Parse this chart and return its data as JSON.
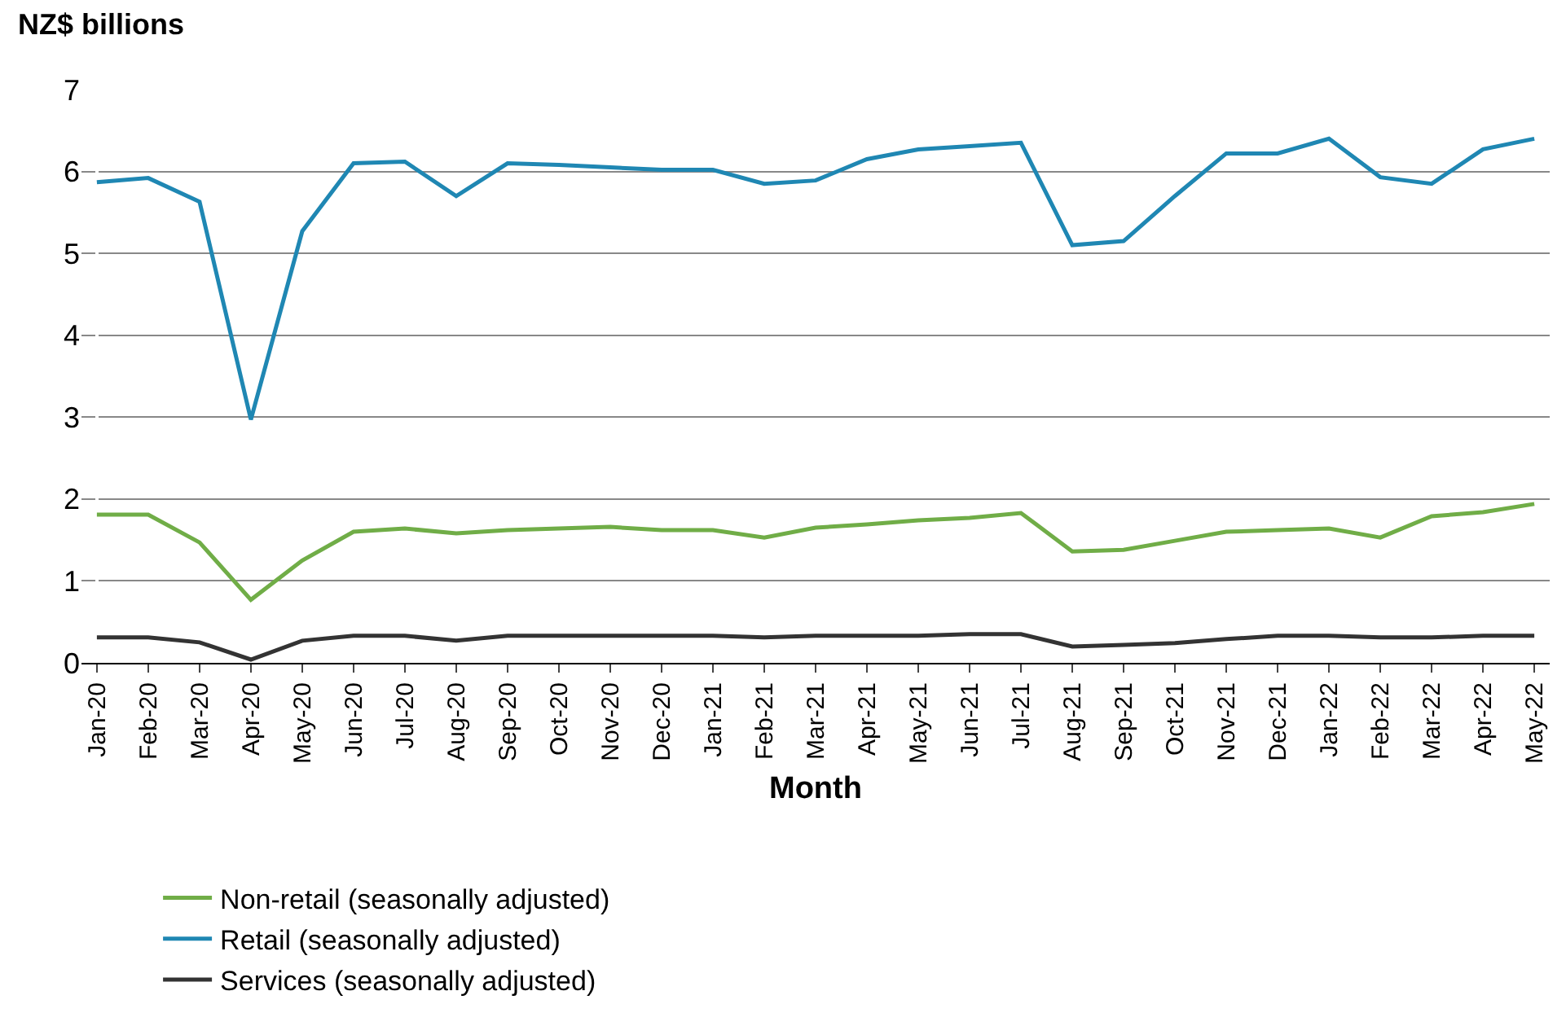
{
  "chart_data": {
    "type": "line",
    "ylabel": "NZ$ billions",
    "xlabel": "Month",
    "categories": [
      "Jan-20",
      "Feb-20",
      "Mar-20",
      "Apr-20",
      "May-20",
      "Jun-20",
      "Jul-20",
      "Aug-20",
      "Sep-20",
      "Oct-20",
      "Nov-20",
      "Dec-20",
      "Jan-21",
      "Feb-21",
      "Mar-21",
      "Apr-21",
      "May-21",
      "Jun-21",
      "Jul-21",
      "Aug-21",
      "Sep-21",
      "Oct-21",
      "Nov-21",
      "Dec-21",
      "Jan-22",
      "Feb-22",
      "Mar-22",
      "Apr-22",
      "May-22"
    ],
    "series": [
      {
        "name": "Non-retail (seasonally adjusted)",
        "color": "#70ad47",
        "values": [
          1.81,
          1.81,
          1.47,
          0.77,
          1.25,
          1.6,
          1.64,
          1.58,
          1.62,
          1.64,
          1.66,
          1.62,
          1.62,
          1.53,
          1.65,
          1.69,
          1.74,
          1.77,
          1.83,
          1.36,
          1.38,
          1.49,
          1.6,
          1.62,
          1.64,
          1.53,
          1.79,
          1.84,
          1.94
        ]
      },
      {
        "name": "Retail (seasonally adjusted)",
        "color": "#1f87b3",
        "values": [
          5.87,
          5.92,
          5.63,
          2.97,
          5.27,
          6.1,
          6.12,
          5.7,
          6.1,
          6.08,
          6.05,
          6.02,
          6.02,
          5.85,
          5.89,
          6.15,
          6.27,
          6.31,
          6.35,
          5.1,
          5.15,
          5.7,
          6.22,
          6.22,
          6.4,
          5.93,
          5.85,
          6.27,
          6.4
        ]
      },
      {
        "name": "Services (seasonally adjusted)",
        "color": "#333333",
        "values": [
          0.31,
          0.31,
          0.25,
          0.04,
          0.27,
          0.33,
          0.33,
          0.27,
          0.33,
          0.33,
          0.33,
          0.33,
          0.33,
          0.31,
          0.33,
          0.33,
          0.33,
          0.35,
          0.35,
          0.2,
          0.22,
          0.24,
          0.29,
          0.33,
          0.33,
          0.31,
          0.31,
          0.33,
          0.33
        ]
      }
    ],
    "ylim": [
      0,
      7
    ],
    "yticks": [
      0,
      1,
      2,
      3,
      4,
      5,
      6,
      7
    ],
    "grid": "y",
    "legend": "bottom",
    "marker": "none",
    "line_style": "solid"
  }
}
